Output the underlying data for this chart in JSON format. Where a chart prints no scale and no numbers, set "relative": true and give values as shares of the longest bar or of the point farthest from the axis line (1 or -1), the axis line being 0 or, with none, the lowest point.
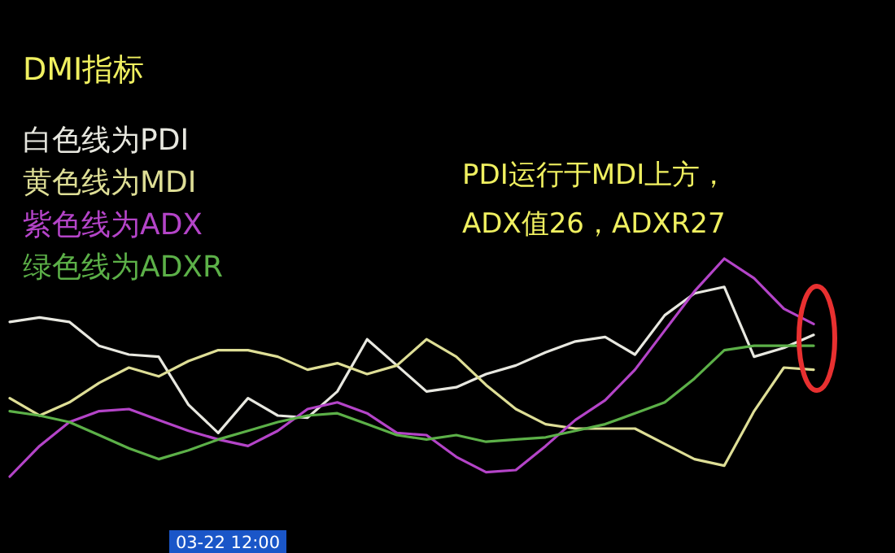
{
  "chart_data": {
    "type": "line",
    "title": "DMI指标",
    "relative": true,
    "annotations": [
      "PDI运行于MDI上方，",
      "ADX值26，ADXR27",
      "03-22 12:00"
    ],
    "categories": [
      null,
      null,
      null,
      null,
      null,
      null,
      null,
      null,
      null,
      null,
      null,
      null,
      null,
      null,
      null,
      null,
      null,
      null,
      null,
      null,
      null,
      null,
      null,
      null,
      null,
      null,
      null,
      null
    ],
    "series": [
      {
        "name": "白色线为PDI",
        "color": "#e8e8e0",
        "values": [
          0.71,
          0.73,
          0.71,
          0.6,
          0.56,
          0.55,
          0.33,
          0.2,
          0.36,
          0.28,
          0.27,
          0.39,
          0.63,
          0.51,
          0.39,
          0.41,
          0.47,
          0.51,
          0.57,
          0.62,
          0.64,
          0.56,
          0.74,
          0.84,
          0.87,
          0.55,
          0.59,
          0.65
        ]
      },
      {
        "name": "黄色线为MDI",
        "color": "#dede96",
        "values": [
          0.36,
          0.28,
          0.34,
          0.43,
          0.5,
          0.46,
          0.53,
          0.58,
          0.58,
          0.55,
          0.49,
          0.52,
          0.47,
          0.51,
          0.63,
          0.55,
          0.42,
          0.31,
          0.24,
          0.22,
          0.22,
          0.22,
          0.15,
          0.08,
          0.05,
          0.3,
          0.5,
          0.49
        ]
      },
      {
        "name": "紫色线为ADX",
        "color": "#b444c8",
        "values": [
          0,
          0.14,
          0.25,
          0.3,
          0.31,
          0.26,
          0.21,
          0.17,
          0.14,
          0.21,
          0.31,
          0.34,
          0.29,
          0.2,
          0.19,
          0.09,
          0.02,
          0.03,
          0.14,
          0.26,
          0.35,
          0.49,
          0.67,
          0.85,
          1,
          0.91,
          0.77,
          0.7
        ]
      },
      {
        "name": "绿色线为ADXR",
        "color": "#5cb048",
        "values": [
          0.3,
          0.28,
          0.25,
          0.19,
          0.13,
          0.08,
          0.12,
          0.17,
          0.21,
          0.25,
          0.28,
          0.29,
          0.24,
          0.19,
          0.17,
          0.19,
          0.16,
          0.17,
          0.18,
          0.21,
          0.24,
          0.29,
          0.34,
          0.45,
          0.58,
          0.6,
          0.6,
          0.6
        ]
      }
    ]
  }
}
